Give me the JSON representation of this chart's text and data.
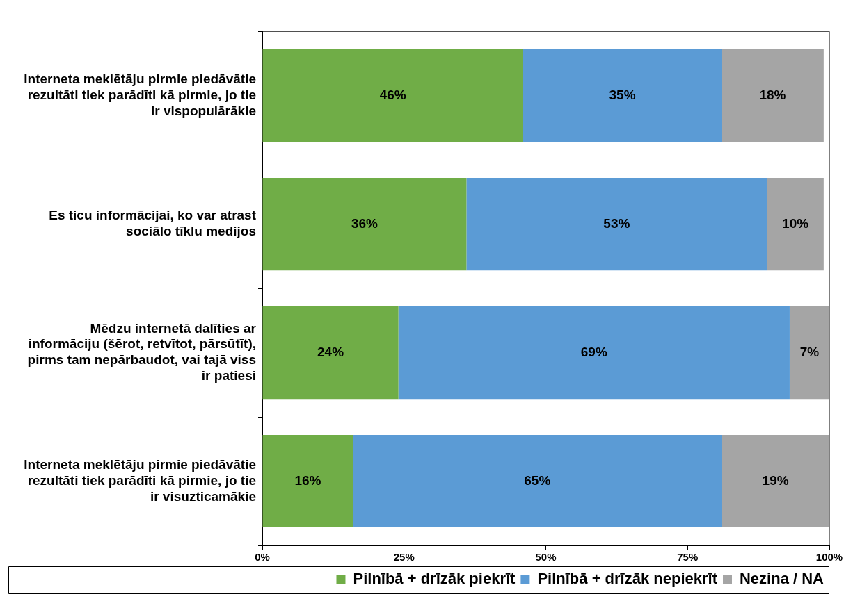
{
  "chart_data": {
    "type": "bar",
    "orientation": "horizontal",
    "stacked": true,
    "categories": [
      "Interneta meklētāju pirmie piedāvātie rezultāti tiek parādīti kā pirmie, jo tie ir vispopulārākie",
      "Es ticu informācijai, ko var atrast sociālo tīklu medijos",
      "Mēdzu internetā dalīties ar informāciju (šērot, retvītot, pārsūtīt), pirms tam nepārbaudot, vai tajā viss ir patiesi",
      "Interneta meklētāju pirmie piedāvātie rezultāti tiek parādīti kā pirmie, jo tie ir visuzticamākie"
    ],
    "series": [
      {
        "name": "Pilnībā + drīzāk piekrīt",
        "color": "#70ad47",
        "values": [
          46,
          36,
          24,
          16
        ],
        "value_labels": [
          "46%",
          "36%",
          "24%",
          "16%"
        ]
      },
      {
        "name": "Pilnībā + drīzāk nepiekrīt",
        "color": "#5b9bd5",
        "values": [
          35,
          53,
          69,
          65
        ],
        "value_labels": [
          "35%",
          "53%",
          "69%",
          "65%"
        ]
      },
      {
        "name": "Nezina / NA",
        "color": "#a5a5a5",
        "values": [
          18,
          10,
          7,
          19
        ],
        "value_labels": [
          "18%",
          "10%",
          "7%",
          "19%"
        ]
      }
    ],
    "xlim": [
      0,
      100
    ],
    "xticks": [
      {
        "value": 0,
        "label": "0%"
      },
      {
        "value": 25,
        "label": "25%"
      },
      {
        "value": 50,
        "label": "50%"
      },
      {
        "value": 75,
        "label": "75%"
      },
      {
        "value": 100,
        "label": "100%"
      }
    ],
    "grid": false,
    "legend": "bottom"
  }
}
